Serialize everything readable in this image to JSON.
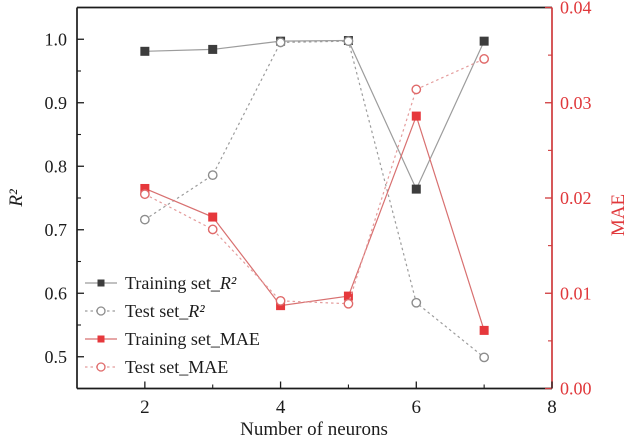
{
  "figure": {
    "background": "#ffffff"
  },
  "chart_data": {
    "type": "line",
    "title": "",
    "xlabel": "Number of neurons",
    "x": [
      2,
      3,
      4,
      5,
      6,
      7
    ],
    "xlim": [
      1,
      8
    ],
    "xticks": [
      2,
      4,
      6,
      8
    ],
    "xtick_labels": [
      "2",
      "4",
      "6",
      "8"
    ],
    "xminor_ticks": [
      3,
      5,
      7
    ],
    "grid": false,
    "left_axis": {
      "label": "R²",
      "lim": [
        0.45,
        1.05
      ],
      "ticks": [
        0.5,
        0.6,
        0.7,
        0.8,
        0.9,
        1.0
      ],
      "tick_labels": [
        "0.5",
        "0.6",
        "0.7",
        "0.8",
        "0.9",
        "1.0"
      ],
      "minor_ticks": [
        0.55,
        0.65,
        0.75,
        0.85,
        0.95
      ],
      "spine_color": "#1c1c1c",
      "text_color": "#1c1c1c"
    },
    "right_axis": {
      "label": "MAE",
      "lim": [
        0.0,
        0.04
      ],
      "ticks": [
        0.0,
        0.01,
        0.02,
        0.03,
        0.04
      ],
      "tick_labels": [
        "0.00",
        "0.01",
        "0.02",
        "0.03",
        "0.04"
      ],
      "minor_ticks": [
        0.005,
        0.015,
        0.025,
        0.035
      ],
      "spine_color": "#cf3a3c",
      "text_color": "#e0383b"
    },
    "series": [
      {
        "name": "Training set_R²",
        "axis": "left",
        "marker": "square",
        "marker_fill": "filled",
        "line_style": "solid",
        "marker_color": "#3d3d3d",
        "line_color": "#9c9c9c",
        "values": [
          0.981,
          0.984,
          0.997,
          0.998,
          0.764,
          0.997
        ]
      },
      {
        "name": "Test set_R²",
        "axis": "left",
        "marker": "circle",
        "marker_fill": "open",
        "line_style": "dashed",
        "marker_color": "#8c8c8c",
        "line_color": "#9c9c9c",
        "values": [
          0.716,
          0.786,
          0.995,
          0.997,
          0.585,
          0.499
        ]
      },
      {
        "name": "Training set_MAE",
        "axis": "right",
        "marker": "square",
        "marker_fill": "filled",
        "line_style": "solid",
        "marker_color": "#e6383c",
        "line_color": "#d87070",
        "values": [
          0.021,
          0.018,
          0.0087,
          0.0097,
          0.0286,
          0.0061
        ]
      },
      {
        "name": "Test set_MAE",
        "axis": "right",
        "marker": "circle",
        "marker_fill": "open",
        "line_style": "dashed",
        "marker_color": "#e06a6a",
        "line_color": "#e49c9c",
        "values": [
          0.0204,
          0.0167,
          0.0092,
          0.0089,
          0.0314,
          0.0346
        ]
      }
    ],
    "legend": {
      "position": "inside-bottom-left",
      "entries": [
        "Training set_R²",
        "Test set_R²",
        "Training set_MAE",
        "Test set_MAE"
      ]
    }
  }
}
